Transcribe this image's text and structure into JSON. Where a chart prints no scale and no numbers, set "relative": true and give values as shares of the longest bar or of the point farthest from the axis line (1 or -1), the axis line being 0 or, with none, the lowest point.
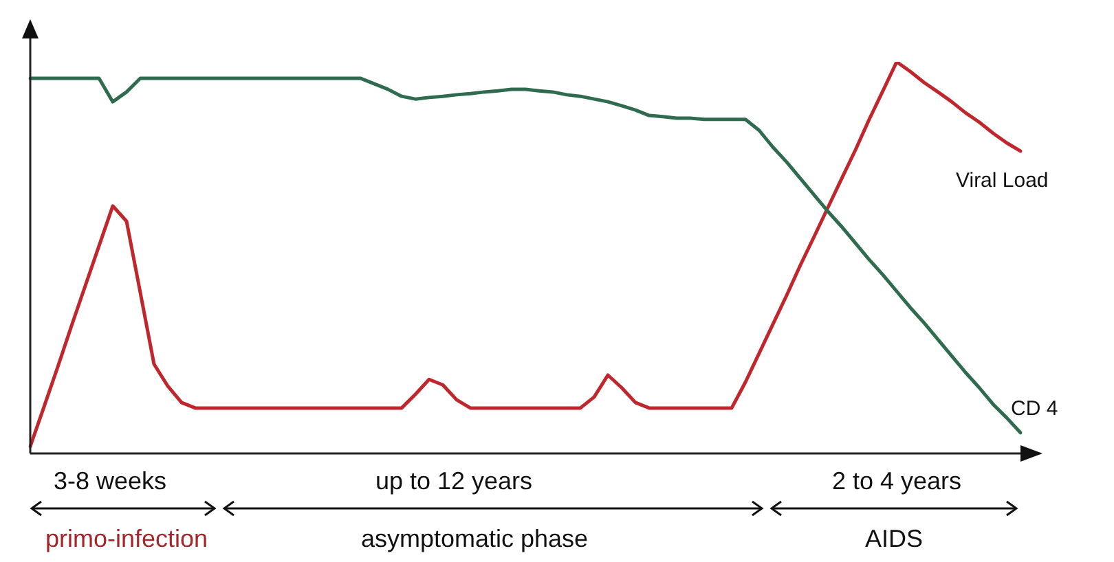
{
  "chart_data": {
    "type": "line",
    "relative": true,
    "categories": [
      null,
      null,
      null,
      null,
      null,
      null,
      null,
      null,
      null,
      null,
      null,
      null,
      null,
      null,
      null,
      null,
      null,
      null,
      null,
      null,
      null,
      null,
      null,
      null,
      null,
      null,
      null,
      null,
      null,
      null,
      null,
      null,
      null,
      null,
      null,
      null,
      null,
      null,
      null,
      null,
      null,
      null,
      null,
      null,
      null,
      null,
      null,
      null,
      null,
      null,
      null,
      null,
      null,
      null,
      null,
      null,
      null,
      null,
      null,
      null,
      null,
      null,
      null,
      null,
      null,
      null,
      null,
      null,
      null,
      null,
      null,
      null,
      null
    ],
    "series": [
      {
        "name": "CD 4",
        "color": "#2e6b4f",
        "values": [
          0.958,
          0.958,
          0.958,
          0.958,
          0.958,
          0.958,
          0.898,
          0.923,
          0.958,
          0.958,
          0.958,
          0.958,
          0.958,
          0.958,
          0.958,
          0.958,
          0.958,
          0.958,
          0.958,
          0.958,
          0.958,
          0.958,
          0.958,
          0.958,
          0.958,
          0.944,
          0.93,
          0.912,
          0.905,
          0.909,
          0.912,
          0.916,
          0.919,
          0.923,
          0.926,
          0.93,
          0.93,
          0.926,
          0.923,
          0.916,
          0.912,
          0.905,
          0.898,
          0.888,
          0.877,
          0.863,
          0.86,
          0.856,
          0.856,
          0.853,
          0.853,
          0.853,
          0.853,
          0.825,
          0.782,
          0.744,
          0.702,
          0.66,
          0.618,
          0.579,
          0.537,
          0.495,
          0.456,
          0.414,
          0.372,
          0.333,
          0.291,
          0.249,
          0.207,
          0.168,
          0.126,
          0.091,
          0.053
        ]
      },
      {
        "name": "Viral Load",
        "color": "#c0272d",
        "values": [
          0.018,
          0.119,
          0.221,
          0.326,
          0.428,
          0.53,
          0.632,
          0.593,
          0.411,
          0.228,
          0.172,
          0.13,
          0.116,
          0.116,
          0.116,
          0.116,
          0.116,
          0.116,
          0.116,
          0.116,
          0.116,
          0.116,
          0.116,
          0.116,
          0.116,
          0.116,
          0.116,
          0.116,
          0.151,
          0.189,
          0.175,
          0.137,
          0.116,
          0.116,
          0.116,
          0.116,
          0.116,
          0.116,
          0.116,
          0.116,
          0.116,
          0.144,
          0.2,
          0.168,
          0.13,
          0.116,
          0.116,
          0.116,
          0.116,
          0.116,
          0.116,
          0.116,
          0.182,
          0.256,
          0.33,
          0.404,
          0.481,
          0.554,
          0.628,
          0.702,
          0.775,
          0.853,
          0.926,
          1,
          0.975,
          0.947,
          0.923,
          0.898,
          0.87,
          0.846,
          0.818,
          0.793,
          0.772
        ]
      }
    ],
    "annotations": [
      "3-8 weeks",
      "up to 12 years",
      "2 to 4 years",
      "primo-infection",
      "asymptomatic phase",
      "AIDS"
    ]
  }
}
